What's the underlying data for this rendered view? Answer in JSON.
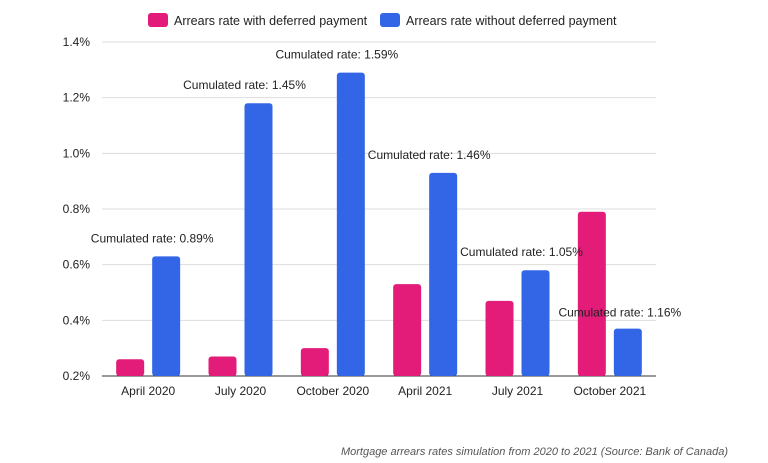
{
  "chart_data": {
    "type": "bar",
    "categories": [
      "April 2020",
      "July 2020",
      "October 2020",
      "April 2021",
      "July 2021",
      "October 2021"
    ],
    "series": [
      {
        "name": "Arrears rate with deferred payment",
        "color": "#E31C79",
        "values": [
          0.26,
          0.27,
          0.3,
          0.53,
          0.47,
          0.79
        ]
      },
      {
        "name": "Arrears rate without deferred payment",
        "color": "#3366E6",
        "values": [
          0.63,
          1.18,
          1.29,
          0.93,
          0.58,
          0.37
        ]
      }
    ],
    "ylim": [
      0.2,
      1.4
    ],
    "yticks": [
      0.2,
      0.4,
      0.6,
      0.8,
      1.0,
      1.2,
      1.4
    ],
    "ytick_labels": [
      "0.2%",
      "0.4%",
      "0.6%",
      "0.8%",
      "1.0%",
      "1.2%",
      "1.4%"
    ],
    "grid": true,
    "legend_position": "top",
    "annotations": [
      "Cumulated rate: 0.89%",
      "Cumulated rate: 1.45%",
      "Cumulated rate: 1.59%",
      "Cumulated rate: 1.46%",
      "Cumulated rate: 1.05%",
      "Cumulated rate: 1.16%"
    ]
  },
  "caption": "Mortgage arrears rates simulation from 2020 to 2021 (Source: Bank of Canada)"
}
